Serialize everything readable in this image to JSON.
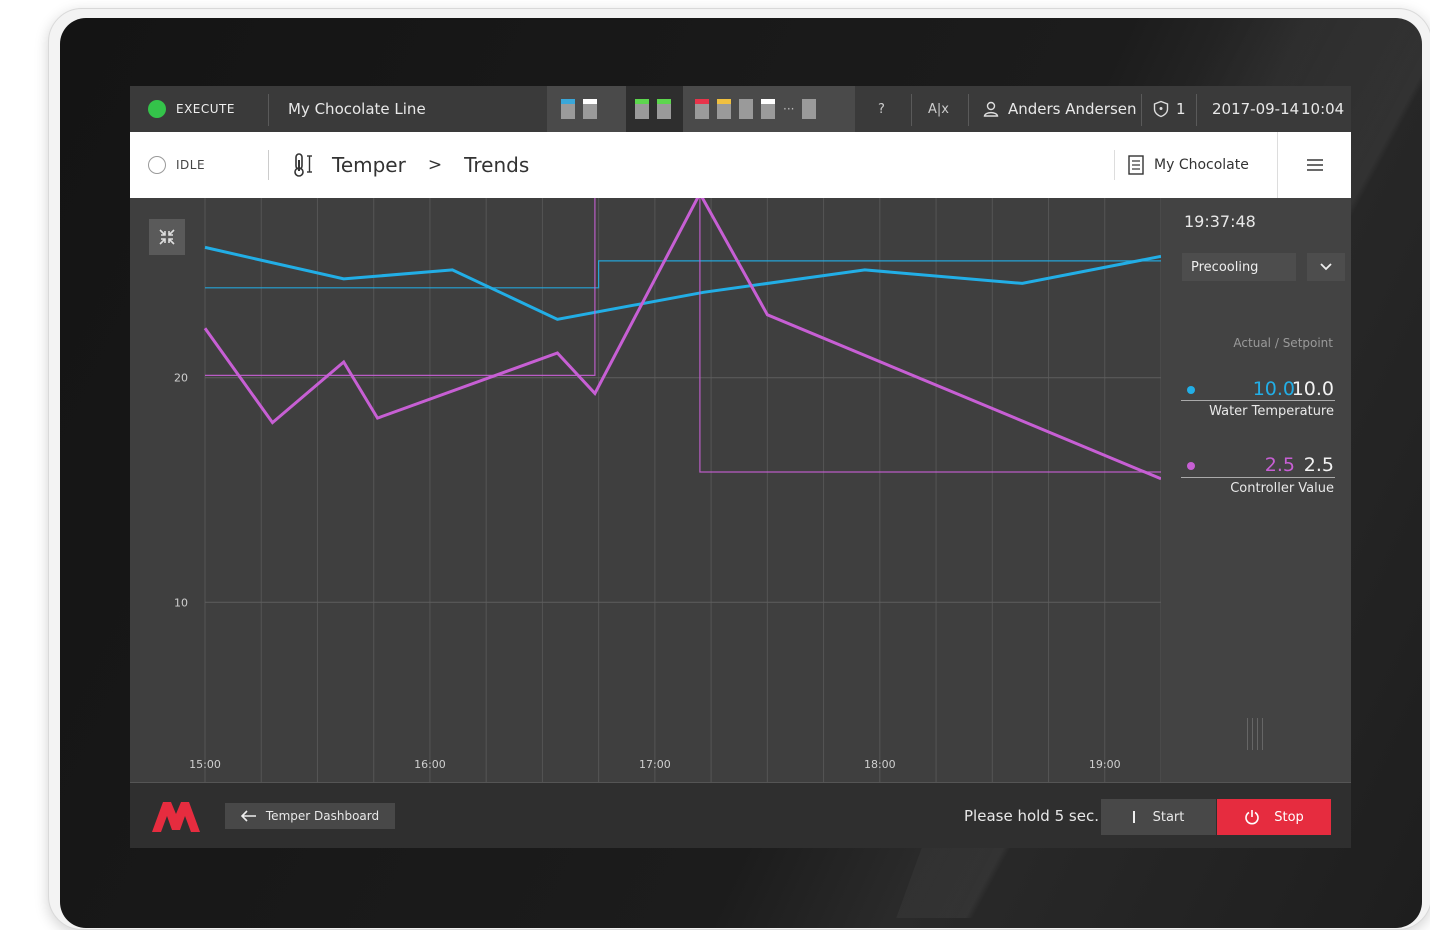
{
  "status": {
    "execute_label": "EXECUTE",
    "idle_label": "IDLE"
  },
  "line_name": "My Chocolate Line",
  "topbar": {
    "help_label": "?",
    "ab_label": "A|x",
    "user_name": "Anders Andersen",
    "alarm_count": "1",
    "date": "2017-09-14",
    "time": "10:04"
  },
  "breadcrumb": {
    "module": "Temper",
    "separator": ">",
    "page": "Trends"
  },
  "recipe_name": "My Chocolate",
  "side_panel": {
    "timestamp": "19:37:48",
    "phase_selected": "Precooling",
    "header": "Actual / Setpoint",
    "readings": [
      {
        "name": "Water Temperature",
        "actual": "10.0",
        "setpoint": "10.0",
        "color": "#22aee6"
      },
      {
        "name": "Controller Value",
        "actual": "2.5",
        "setpoint": "2.5",
        "color": "#c75fd4"
      }
    ]
  },
  "bottom": {
    "back_label": "Temper Dashboard",
    "hold_message": "Please hold 5 sec.",
    "start_label": "Start",
    "stop_label": "Stop"
  },
  "colors": {
    "accent_blue": "#22aee6",
    "accent_magenta": "#c75fd4",
    "stop_red": "#e62c3f",
    "execute_green": "#34c34a"
  },
  "chart_data": {
    "type": "line",
    "title": "",
    "xlabel": "",
    "ylabel": "",
    "x_ticks": [
      "15:00",
      "16:00",
      "17:00",
      "18:00",
      "19:00"
    ],
    "y_ticks": [
      "10",
      "20"
    ],
    "xlim": [
      "15:00",
      "19:15"
    ],
    "ylim": [
      2,
      28
    ],
    "grid": true,
    "series": [
      {
        "name": "Water Temperature",
        "kind": "actual",
        "color": "#22aee6",
        "x": [
          "15:00",
          "15:37",
          "16:06",
          "16:34",
          "17:13",
          "17:56",
          "18:38",
          "19:15"
        ],
        "y": [
          25.8,
          24.4,
          24.8,
          22.6,
          23.8,
          24.8,
          24.2,
          25.4
        ]
      },
      {
        "name": "Water Temperature",
        "kind": "setpoint",
        "color": "#22aee6",
        "x": [
          "15:00",
          "16:45",
          "16:45",
          "19:15"
        ],
        "y": [
          24.0,
          24.0,
          25.2,
          25.2
        ]
      },
      {
        "name": "Controller Value",
        "kind": "actual",
        "color": "#c75fd4",
        "x": [
          "15:00",
          "15:18",
          "15:37",
          "15:46",
          "16:34",
          "16:44",
          "17:12",
          "17:30",
          "19:15"
        ],
        "y": [
          22.2,
          18.0,
          20.7,
          18.2,
          21.1,
          19.3,
          28.2,
          22.8,
          15.5
        ]
      },
      {
        "name": "Controller Value",
        "kind": "setpoint",
        "color": "#c75fd4",
        "x": [
          "15:00",
          "16:44",
          "16:44",
          "17:12",
          "17:12",
          "19:15"
        ],
        "y": [
          20.1,
          20.1,
          28.2,
          28.2,
          15.8,
          15.8
        ]
      }
    ]
  }
}
